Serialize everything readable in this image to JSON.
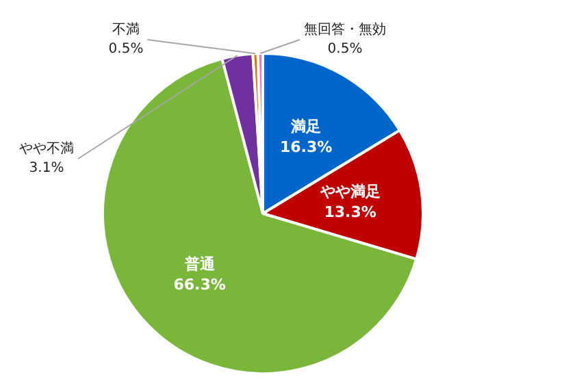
{
  "chart_data": {
    "type": "pie",
    "categories": [
      "満足",
      "やや満足",
      "普通",
      "やや不満",
      "不満",
      "無回答・無効"
    ],
    "values": [
      16.3,
      13.3,
      66.3,
      3.1,
      0.5,
      0.5
    ],
    "value_labels": [
      "16.3%",
      "13.3%",
      "66.3%",
      "3.1%",
      "0.5%",
      "0.5%"
    ],
    "colors": [
      "#0066cc",
      "#c00000",
      "#7ab63a",
      "#7030a0",
      "#e07000",
      "#ff66cc"
    ],
    "legend": false
  }
}
